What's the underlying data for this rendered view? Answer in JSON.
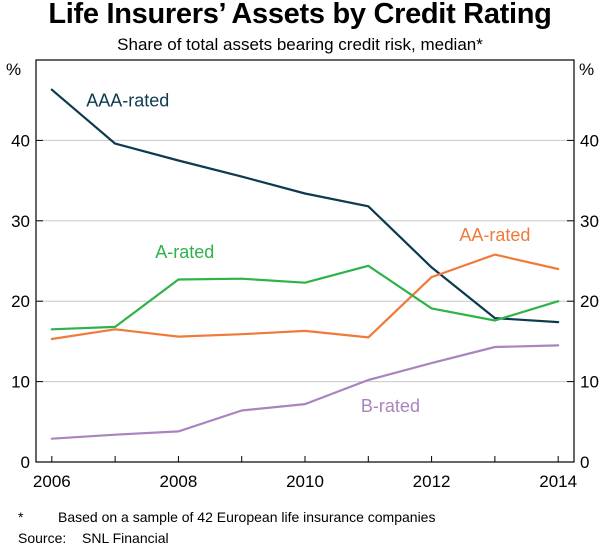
{
  "chart_data": {
    "type": "line",
    "title": "Life Insurers’ Assets by Credit Rating",
    "subtitle": "Share of total assets bearing credit risk, median*",
    "ylabel_left": "%",
    "ylabel_right": "%",
    "ylim": [
      0,
      50
    ],
    "yticks": [
      0,
      10,
      20,
      30,
      40
    ],
    "xlim": [
      2005.75,
      2014.25
    ],
    "xticks": [
      2006,
      2008,
      2010,
      2012,
      2014
    ],
    "x": [
      2006,
      2007,
      2008,
      2009,
      2010,
      2011,
      2012,
      2013,
      2014
    ],
    "series": [
      {
        "name": "AAA-rated",
        "color": "#0d3a4f",
        "values": [
          46.3,
          39.6,
          37.5,
          35.5,
          33.4,
          31.8,
          24.2,
          17.9,
          17.4
        ]
      },
      {
        "name": "AA-rated",
        "color": "#ef7a3a",
        "values": [
          15.3,
          16.5,
          15.6,
          15.9,
          16.3,
          15.5,
          23.0,
          25.8,
          24.0
        ]
      },
      {
        "name": "A-rated",
        "color": "#2eb24a",
        "values": [
          16.5,
          16.8,
          22.7,
          22.8,
          22.3,
          24.4,
          19.1,
          17.6,
          20.0
        ]
      },
      {
        "name": "B-rated",
        "color": "#a984bf",
        "values": [
          2.9,
          3.4,
          3.8,
          6.4,
          7.2,
          10.2,
          12.3,
          14.3,
          14.5
        ]
      }
    ]
  },
  "footnotes": {
    "note_marker": "*",
    "note_text": "Based on a sample of 42 European life insurance companies",
    "source_label": "Source:",
    "source_text": "SNL Financial"
  }
}
